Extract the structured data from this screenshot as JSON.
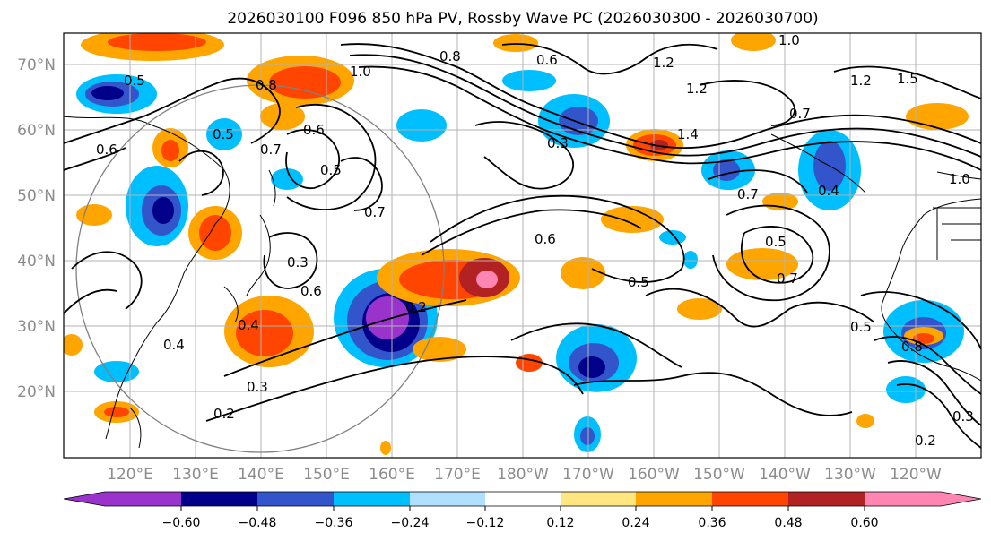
{
  "title": "2026030100 F096 850 hPa PV, Rossby Wave PC (2026030300 - 2026030700)",
  "map": {
    "lat_labels": [
      "70°N",
      "60°N",
      "50°N",
      "40°N",
      "30°N",
      "20°N"
    ],
    "lon_labels": [
      "120°E",
      "130°E",
      "140°E",
      "150°E",
      "160°E",
      "170°E",
      "180°W",
      "170°W",
      "160°W",
      "150°W",
      "140°W",
      "130°W",
      "120°W"
    ],
    "contour_labels": [
      "1.0",
      "1.2",
      "1.2",
      "1.2",
      "1.4",
      "1.5",
      "0.7",
      "0.8",
      "0.6",
      "0.5",
      "0.5",
      "0.3",
      "0.4",
      "0.7",
      "0.6",
      "0.7",
      "0.5",
      "0.7",
      "0.6",
      "0.2",
      "0.4",
      "0.3",
      "0.2",
      "0.5",
      "0.8",
      "0.3",
      "0.2",
      "0.6",
      "1.0",
      "0.6",
      "0.8",
      "0.4",
      "0.3",
      "0.5",
      "0.7",
      "1.0",
      "0.5"
    ]
  },
  "colorbar": {
    "ticks": [
      "−0.60",
      "−0.48",
      "−0.36",
      "−0.24",
      "−0.12",
      "0.12",
      "0.24",
      "0.36",
      "0.48",
      "0.60"
    ],
    "colors": [
      "#9933cc",
      "#00008b",
      "#3355cc",
      "#00bfff",
      "#b0e0ff",
      "#ffffff",
      "#ffe680",
      "#ffa500",
      "#ff4500",
      "#b22222",
      "#ff85b3",
      "#ff85b3"
    ]
  }
}
